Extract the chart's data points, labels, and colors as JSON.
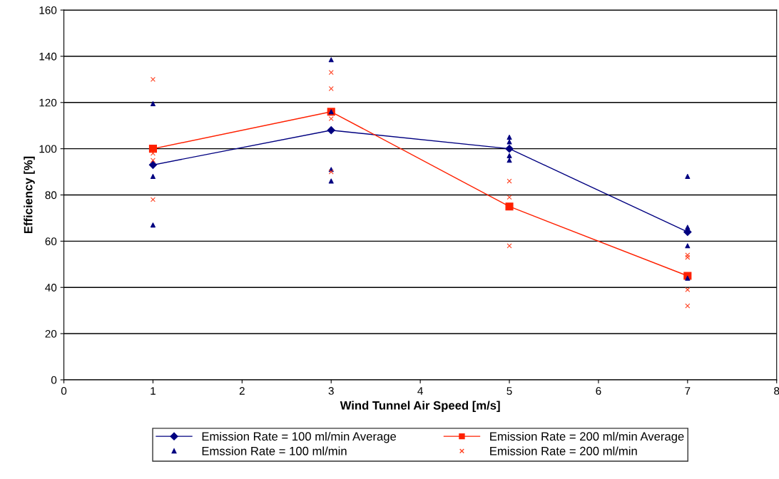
{
  "chart_data": {
    "type": "line",
    "xlabel": "Wind Tunnel Air Speed [m/s]",
    "ylabel": "Efficiency [%]",
    "xlim": [
      0,
      8
    ],
    "xticks": [
      0,
      1,
      2,
      3,
      4,
      5,
      6,
      7,
      8
    ],
    "ylim": [
      0,
      160
    ],
    "yticks": [
      0,
      20,
      40,
      60,
      80,
      100,
      120,
      140,
      160
    ],
    "grid": "y",
    "legend": "bottom",
    "series": [
      {
        "name": "Emission Rate = 100 ml/min Average",
        "marker": "diamond",
        "line_style": "solid",
        "color": "#000080",
        "x": [
          1,
          3,
          5,
          7
        ],
        "values": [
          93,
          108,
          100,
          64
        ]
      },
      {
        "name": "Emission Rate = 200 ml/min Average",
        "marker": "square",
        "line_style": "solid",
        "color": "#ff2000",
        "x": [
          1,
          3,
          5,
          7
        ],
        "values": [
          100,
          116,
          75,
          45
        ]
      },
      {
        "name": "Emssion Rate = 100 ml/min",
        "type": "scatter",
        "marker": "triangle",
        "color": "#000080",
        "x": [
          1,
          1,
          1,
          1,
          3,
          3,
          3,
          3,
          5,
          5,
          5,
          5,
          7,
          7,
          7,
          7
        ],
        "values": [
          119.5,
          94,
          88,
          67,
          138.5,
          116,
          91,
          86,
          105,
          103,
          97,
          95,
          88,
          66,
          58,
          44
        ]
      },
      {
        "name": "Emission Rate = 200 ml/min",
        "type": "scatter",
        "marker": "cross",
        "color": "#ff4020",
        "x": [
          1,
          1,
          1,
          1,
          3,
          3,
          3,
          3,
          5,
          5,
          5,
          7,
          7,
          7,
          7
        ],
        "values": [
          130,
          98,
          95,
          78,
          133,
          126,
          113,
          90,
          86,
          79,
          58,
          54,
          53,
          39,
          32
        ]
      }
    ]
  }
}
